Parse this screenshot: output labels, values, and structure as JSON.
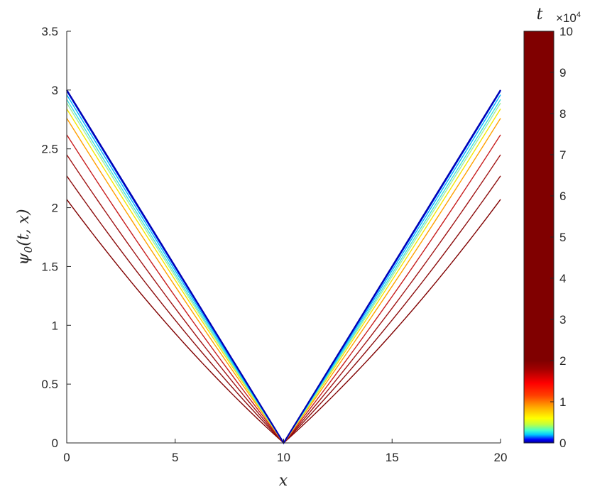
{
  "chart_data": {
    "type": "line",
    "xlabel": "x",
    "ylabel": "ψ",
    "ylabel_sub": "0",
    "ylabel_args": "(t, x)",
    "xlim": [
      0,
      20
    ],
    "ylim": [
      0,
      3.5
    ],
    "xticks": [
      0,
      5,
      10,
      15,
      20
    ],
    "yticks": [
      0,
      0.5,
      1,
      1.5,
      2,
      2.5,
      3,
      3.5
    ],
    "x_tick_labels": [
      "0",
      "5",
      "10",
      "15",
      "20"
    ],
    "y_tick_labels": [
      "0",
      "0.5",
      "1",
      "1.5",
      "2",
      "2.5",
      "3",
      "3.5"
    ],
    "grid": false,
    "series": [
      {
        "t": 0,
        "color": "#0000b4",
        "x": [
          0,
          10,
          20
        ],
        "y": [
          3.0,
          0.0,
          3.0
        ],
        "curvature": 0.0
      },
      {
        "t": 1000,
        "color": "#0048ff",
        "x": [
          0,
          10,
          20
        ],
        "y": [
          2.99,
          0.0,
          2.99
        ],
        "curvature": 0.01
      },
      {
        "t": 2500,
        "color": "#00b4ff",
        "x": [
          0,
          10,
          20
        ],
        "y": [
          2.96,
          0.0,
          2.96
        ],
        "curvature": 0.02
      },
      {
        "t": 4000,
        "color": "#40e0e0",
        "x": [
          0,
          10,
          20
        ],
        "y": [
          2.92,
          0.0,
          2.92
        ],
        "curvature": 0.03
      },
      {
        "t": 5500,
        "color": "#a0f0a0",
        "x": [
          0,
          10,
          20
        ],
        "y": [
          2.89,
          0.0,
          2.89
        ],
        "curvature": 0.04
      },
      {
        "t": 7000,
        "color": "#f5e600",
        "x": [
          0,
          10,
          20
        ],
        "y": [
          2.84,
          0.0,
          2.84
        ],
        "curvature": 0.05
      },
      {
        "t": 9500,
        "color": "#ffa000",
        "x": [
          0,
          10,
          20
        ],
        "y": [
          2.76,
          0.0,
          2.76
        ],
        "curvature": 0.07
      },
      {
        "t": 13000,
        "color": "#c81e1e",
        "x": [
          0,
          10,
          20
        ],
        "y": [
          2.62,
          0.0,
          2.62
        ],
        "curvature": 0.1
      },
      {
        "t": 18000,
        "color": "#a01414",
        "x": [
          0,
          10,
          20
        ],
        "y": [
          2.45,
          0.0,
          2.45
        ],
        "curvature": 0.13
      },
      {
        "t": 25000,
        "color": "#8c0c0c",
        "x": [
          0,
          10,
          20
        ],
        "y": [
          2.27,
          0.0,
          2.27
        ],
        "curvature": 0.16
      },
      {
        "t": 35000,
        "color": "#800000",
        "x": [
          0,
          10,
          20
        ],
        "y": [
          2.07,
          0.0,
          2.07
        ],
        "curvature": 0.2
      }
    ],
    "colorbar": {
      "title": "t",
      "exponent_base": "×10",
      "exponent_power": "4",
      "range": [
        0,
        10
      ],
      "ticks": [
        0,
        1,
        2,
        3,
        4,
        5,
        6,
        7,
        8,
        9,
        10
      ],
      "tick_labels": [
        "0",
        "1",
        "2",
        "3",
        "4",
        "5",
        "6",
        "7",
        "8",
        "9",
        "10"
      ],
      "colormap": [
        {
          "v": 0.0,
          "color": "#00008c"
        },
        {
          "v": 0.08,
          "color": "#0000ff"
        },
        {
          "v": 0.2,
          "color": "#00c8ff"
        },
        {
          "v": 0.3,
          "color": "#40ffd0"
        },
        {
          "v": 0.45,
          "color": "#c0ff40"
        },
        {
          "v": 0.6,
          "color": "#ffff00"
        },
        {
          "v": 0.85,
          "color": "#ffb000"
        },
        {
          "v": 1.15,
          "color": "#ff4000"
        },
        {
          "v": 1.45,
          "color": "#ff0000"
        },
        {
          "v": 1.8,
          "color": "#a00000"
        },
        {
          "v": 2.0,
          "color": "#800000"
        },
        {
          "v": 10.0,
          "color": "#800000"
        }
      ]
    }
  }
}
